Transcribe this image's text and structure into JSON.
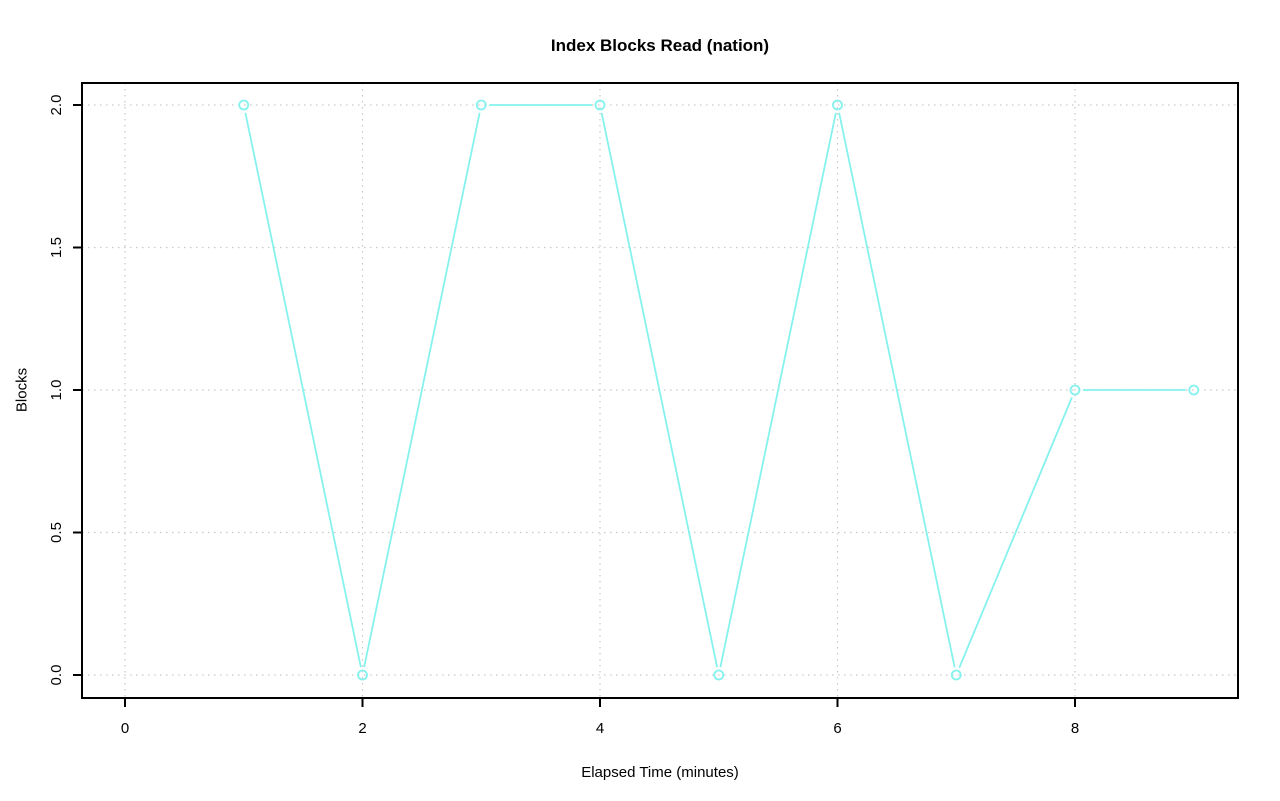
{
  "chart_data": {
    "type": "line",
    "title": "Index Blocks Read (nation)",
    "xlabel": "Elapsed Time (minutes)",
    "ylabel": "Blocks",
    "x": [
      1,
      2,
      3,
      4,
      5,
      6,
      7,
      8,
      9
    ],
    "y": [
      2,
      0,
      2,
      2,
      0,
      2,
      0,
      1,
      1
    ],
    "xticks": [
      "0",
      "2",
      "4",
      "6",
      "8"
    ],
    "yticks": [
      "0.0",
      "0.5",
      "1.0",
      "1.5",
      "2.0"
    ],
    "xlim": [
      -0.36,
      9.37
    ],
    "ylim": [
      -0.08,
      2.08
    ],
    "grid": "dotted",
    "legend": "none",
    "marker": "open-circle",
    "line_style": "solid",
    "colors": {
      "series": "#85F2EE",
      "grid": "#C9C9C9",
      "axis": "#000000",
      "text": "#000000"
    }
  }
}
